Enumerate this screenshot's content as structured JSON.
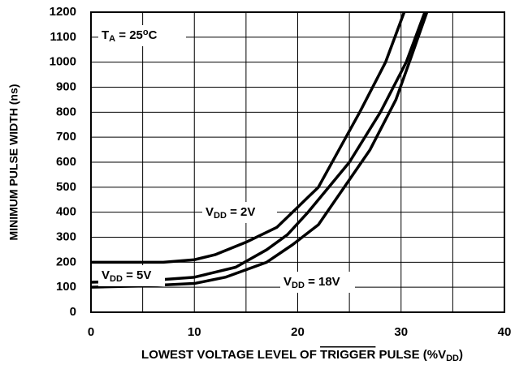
{
  "chart_data": {
    "type": "line",
    "ylabel": "MINIMUM PULSE WIDTH (ns)",
    "xlabel_parts": [
      "LOWEST VOLTAGE LEVEL OF ",
      "TRIGGER",
      " PULSE (%V",
      "DD",
      ")"
    ],
    "annotation_parts": [
      "T",
      "A",
      " = 25",
      "o",
      "C"
    ],
    "xlim": [
      0,
      40
    ],
    "xticks": [
      0,
      10,
      20,
      30,
      40
    ],
    "x_minor_grid": [
      5,
      15,
      25,
      35
    ],
    "ylim": [
      0,
      1200
    ],
    "yticks": [
      0,
      100,
      200,
      300,
      400,
      500,
      600,
      700,
      800,
      900,
      1000,
      1100,
      1200
    ],
    "grid": true,
    "series": [
      {
        "name_parts": [
          "V",
          "DD",
          " = 2V"
        ],
        "color": "#000000",
        "x": [
          0,
          7,
          10,
          12,
          15,
          18,
          20,
          22,
          24,
          26,
          28.5,
          30.3
        ],
        "values": [
          200,
          200,
          210,
          230,
          280,
          340,
          420,
          500,
          650,
          800,
          1000,
          1200
        ]
      },
      {
        "name_parts": [
          "V",
          "DD",
          " = 5V"
        ],
        "color": "#000000",
        "x": [
          0,
          5,
          10,
          14,
          17,
          19,
          21,
          23,
          25,
          28,
          30.5,
          32.3
        ],
        "values": [
          120,
          125,
          140,
          180,
          250,
          310,
          400,
          500,
          600,
          800,
          1000,
          1200
        ]
      },
      {
        "name_parts": [
          "V",
          "DD",
          " = 18V"
        ],
        "color": "#000000",
        "x": [
          0,
          5,
          10,
          13,
          17,
          19.5,
          22,
          24.5,
          27,
          29.5,
          30.8,
          32.5
        ],
        "values": [
          100,
          105,
          115,
          140,
          200,
          270,
          350,
          500,
          650,
          850,
          1000,
          1200
        ]
      }
    ]
  }
}
